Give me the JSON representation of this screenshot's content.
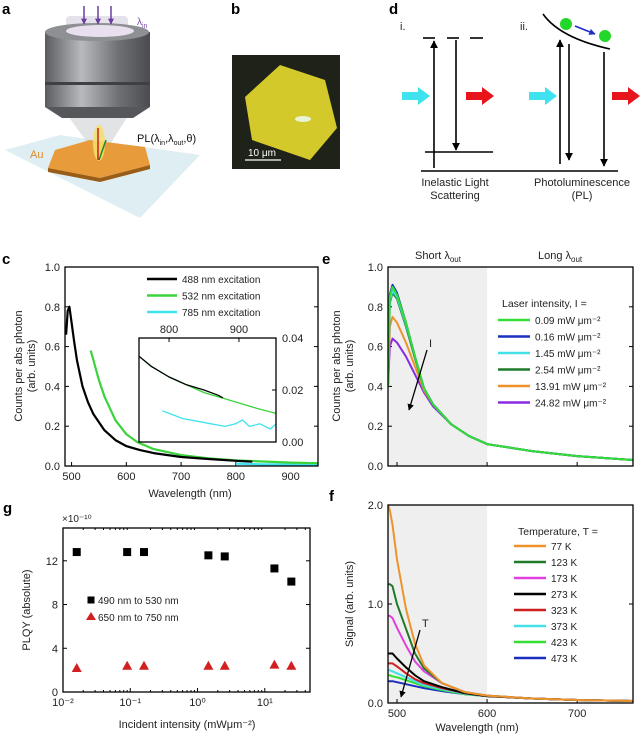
{
  "panel_letters": {
    "a": "a",
    "b": "b",
    "c": "c",
    "d": "d",
    "e": "e",
    "f": "f",
    "g": "g"
  },
  "panel_a": {
    "lambda_in": {
      "base": "λ",
      "sub": "in"
    },
    "au_label": "Au",
    "pl_label": {
      "pre": "PL(λ",
      "sub1": "in",
      "mid": ",λ",
      "sub2": "out",
      "post": ",θ)"
    }
  },
  "panel_b": {
    "scale_bar": "10 μm"
  },
  "panel_d": {
    "i_label": "i.",
    "ii_label": "ii.",
    "inelastic_line1": "Inelastic Light",
    "inelastic_line2": "Scattering",
    "pl_line1": "Photoluminescence",
    "pl_line2": "(PL)",
    "colors": {
      "incident": "#3fe3f0",
      "emitted": "#e8141b",
      "carrier": "#22d62a",
      "relax_arrow": "#1c2fc9"
    }
  },
  "chart_data": [
    {
      "id": "c",
      "type": "line",
      "xlabel": "Wavelength (nm)",
      "ylabel": [
        "Counts per abs photon",
        "(arb. units)"
      ],
      "xlim": [
        488,
        950
      ],
      "ylim": [
        0,
        1
      ],
      "xticks": [
        500,
        600,
        700,
        800,
        900
      ],
      "xtick_labels": [
        "500",
        "600",
        "700",
        "800",
        "900"
      ],
      "yticks": [
        0,
        0.2,
        0.4,
        0.6,
        0.8,
        1.0
      ],
      "ytick_labels": [
        "0.0",
        "0.2",
        "0.4",
        "0.6",
        "0.8",
        "1.0"
      ],
      "legend": "top-right",
      "series": [
        {
          "name": "488 nm excitation",
          "color": "#000000",
          "points": [
            [
              490,
              0.66
            ],
            [
              493,
              0.78
            ],
            [
              496,
              0.8
            ],
            [
              500,
              0.72
            ],
            [
              505,
              0.62
            ],
            [
              510,
              0.53
            ],
            [
              520,
              0.4
            ],
            [
              530,
              0.32
            ],
            [
              540,
              0.26
            ],
            [
              560,
              0.18
            ],
            [
              580,
              0.13
            ],
            [
              600,
              0.1
            ],
            [
              625,
              0.08
            ],
            [
              650,
              0.065
            ],
            [
              700,
              0.045
            ],
            [
              750,
              0.035
            ],
            [
              800,
              0.026
            ],
            [
              830,
              0.022
            ]
          ]
        },
        {
          "name": "532 nm excitation",
          "color": "#3ad43a",
          "points": [
            [
              535,
              0.58
            ],
            [
              540,
              0.53
            ],
            [
              550,
              0.43
            ],
            [
              560,
              0.35
            ],
            [
              570,
              0.29
            ],
            [
              580,
              0.23
            ],
            [
              600,
              0.16
            ],
            [
              620,
              0.12
            ],
            [
              650,
              0.085
            ],
            [
              700,
              0.055
            ],
            [
              750,
              0.038
            ],
            [
              800,
              0.028
            ],
            [
              900,
              0.017
            ],
            [
              950,
              0.014
            ]
          ]
        },
        {
          "name": "785 nm excitation",
          "color": "#3fe3f0",
          "points": [
            [
              800,
              0.012
            ],
            [
              850,
              0.008
            ],
            [
              900,
              0.008
            ],
            [
              950,
              0.007
            ]
          ]
        }
      ],
      "inset": {
        "xlim": [
          757,
          953
        ],
        "ylim": [
          0,
          0.04
        ],
        "xticks": [
          800,
          900
        ],
        "xtick_labels": [
          "800",
          "900"
        ],
        "yticks": [
          0,
          0.02,
          0.04
        ],
        "ytick_labels": [
          "0.00",
          "0.02",
          "0.04"
        ],
        "series": [
          {
            "color": "#3ad43a",
            "points": [
              [
                757,
                0.033
              ],
              [
                775,
                0.029
              ],
              [
                800,
                0.025
              ],
              [
                825,
                0.022
              ],
              [
                850,
                0.019
              ],
              [
                875,
                0.017
              ],
              [
                900,
                0.015
              ],
              [
                925,
                0.013
              ],
              [
                953,
                0.011
              ]
            ]
          },
          {
            "color": "#000000",
            "points": [
              [
                757,
                0.033
              ],
              [
                775,
                0.029
              ],
              [
                800,
                0.025
              ],
              [
                825,
                0.022
              ],
              [
                850,
                0.02
              ],
              [
                870,
                0.018
              ],
              [
                877,
                0.017
              ]
            ]
          },
          {
            "color": "#3fe3f0",
            "points": [
              [
                790,
                0.012
              ],
              [
                800,
                0.011
              ],
              [
                820,
                0.009
              ],
              [
                840,
                0.008
              ],
              [
                860,
                0.007
              ],
              [
                880,
                0.006
              ],
              [
                895,
                0.007
              ],
              [
                905,
                0.0085
              ],
              [
                915,
                0.006
              ],
              [
                930,
                0.007
              ],
              [
                945,
                0.005
              ],
              [
                953,
                0.007
              ]
            ]
          }
        ]
      }
    },
    {
      "id": "e",
      "type": "line",
      "xlabel": "",
      "ylabel": [
        "Counts per abs photon",
        "(arb. units)"
      ],
      "xlim": [
        490,
        762
      ],
      "ylim": [
        0,
        1
      ],
      "xticks": [
        500,
        600,
        700
      ],
      "xtick_labels": [],
      "yticks": [
        0,
        0.2,
        0.4,
        0.6,
        0.8,
        1.0
      ],
      "ytick_labels": [
        "0.0",
        "0.2",
        "0.4",
        "0.6",
        "0.8",
        "1.0"
      ],
      "shaded_region": [
        490,
        600
      ],
      "region_labels": {
        "short": {
          "base": "Short λ",
          "sub": "out"
        },
        "long": {
          "base": "Long λ",
          "sub": "out"
        }
      },
      "arrow_label": "I",
      "legend_title": "Laser intensity, I =",
      "legend": "right",
      "series": [
        {
          "name": "0.09 mW μm⁻²",
          "color": "#33dd33",
          "peak": 0.9
        },
        {
          "name": "0.16 mW μm⁻²",
          "color": "#1a2fbf",
          "peak": 0.91
        },
        {
          "name": "1.45 mW μm⁻²",
          "color": "#44e0e8",
          "peak": 0.88
        },
        {
          "name": "2.54 mW μm⁻²",
          "color": "#1f7a2a",
          "peak": 0.87
        },
        {
          "name": "13.91 mW μm⁻²",
          "color": "#f0922b",
          "peak": 0.75
        },
        {
          "name": "24.82 mW μm⁻²",
          "color": "#8a2be2",
          "peak": 0.64
        }
      ],
      "x": [
        490,
        492,
        495,
        500,
        510,
        520,
        530,
        540,
        560,
        580,
        600,
        650,
        700,
        762
      ],
      "y": [
        [
          0.4,
          0.85,
          0.9,
          0.86,
          0.72,
          0.55,
          0.39,
          0.31,
          0.21,
          0.15,
          0.11,
          0.075,
          0.05,
          0.03
        ],
        [
          0.4,
          0.86,
          0.91,
          0.87,
          0.72,
          0.55,
          0.39,
          0.31,
          0.21,
          0.15,
          0.11,
          0.075,
          0.05,
          0.03
        ],
        [
          0.4,
          0.83,
          0.88,
          0.85,
          0.71,
          0.55,
          0.39,
          0.31,
          0.21,
          0.15,
          0.11,
          0.075,
          0.05,
          0.03
        ],
        [
          0.4,
          0.82,
          0.87,
          0.84,
          0.7,
          0.54,
          0.39,
          0.31,
          0.21,
          0.15,
          0.11,
          0.075,
          0.05,
          0.03
        ],
        [
          0.4,
          0.7,
          0.75,
          0.72,
          0.62,
          0.5,
          0.38,
          0.31,
          0.21,
          0.15,
          0.11,
          0.075,
          0.05,
          0.03
        ],
        [
          0.4,
          0.6,
          0.64,
          0.62,
          0.55,
          0.46,
          0.37,
          0.3,
          0.21,
          0.15,
          0.11,
          0.075,
          0.05,
          0.03
        ]
      ]
    },
    {
      "id": "f",
      "type": "line",
      "xlabel": "Wavelength (nm)",
      "ylabel": [
        "Signal (arb. units)"
      ],
      "xlim": [
        490,
        762
      ],
      "ylim": [
        0,
        2
      ],
      "xticks": [
        500,
        600,
        700
      ],
      "xtick_labels": [
        "500",
        "600",
        "700"
      ],
      "yticks": [
        0,
        1,
        2
      ],
      "ytick_labels": [
        "0.0",
        "1.0",
        "2.0"
      ],
      "shaded_region": [
        490,
        600
      ],
      "arrow_label": "T",
      "legend_title": "Temperature, T =",
      "legend": "right",
      "series": [
        {
          "name": "77 K",
          "color": "#f0922b"
        },
        {
          "name": "123 K",
          "color": "#1f7a2a"
        },
        {
          "name": "173 K",
          "color": "#e040e0"
        },
        {
          "name": "273 K",
          "color": "#000000"
        },
        {
          "name": "323 K",
          "color": "#cc1f1f"
        },
        {
          "name": "373 K",
          "color": "#44e0e8"
        },
        {
          "name": "423 K",
          "color": "#33dd33"
        },
        {
          "name": "473 K",
          "color": "#1a2fbf"
        }
      ],
      "x": [
        490,
        492,
        495,
        500,
        510,
        520,
        530,
        550,
        575,
        600,
        650,
        700,
        762
      ],
      "y": [
        [
          2.0,
          1.95,
          1.8,
          1.45,
          0.95,
          0.6,
          0.38,
          0.2,
          0.11,
          0.075,
          0.045,
          0.03,
          0.02
        ],
        [
          1.2,
          1.2,
          1.18,
          1.0,
          0.75,
          0.5,
          0.35,
          0.2,
          0.11,
          0.075,
          0.045,
          0.03,
          0.02
        ],
        [
          0.88,
          0.88,
          0.86,
          0.76,
          0.58,
          0.42,
          0.32,
          0.2,
          0.11,
          0.075,
          0.045,
          0.03,
          0.02
        ],
        [
          0.5,
          0.5,
          0.5,
          0.45,
          0.36,
          0.28,
          0.22,
          0.16,
          0.1,
          0.07,
          0.045,
          0.03,
          0.02
        ],
        [
          0.4,
          0.4,
          0.4,
          0.37,
          0.3,
          0.24,
          0.2,
          0.15,
          0.1,
          0.07,
          0.045,
          0.03,
          0.02
        ],
        [
          0.33,
          0.33,
          0.32,
          0.3,
          0.26,
          0.22,
          0.18,
          0.14,
          0.095,
          0.07,
          0.045,
          0.03,
          0.02
        ],
        [
          0.28,
          0.28,
          0.27,
          0.26,
          0.23,
          0.2,
          0.17,
          0.13,
          0.09,
          0.07,
          0.045,
          0.03,
          0.02
        ],
        [
          0.22,
          0.22,
          0.22,
          0.21,
          0.19,
          0.17,
          0.15,
          0.12,
          0.09,
          0.07,
          0.045,
          0.03,
          0.02
        ]
      ]
    },
    {
      "id": "g",
      "type": "scatter",
      "xlabel": "Incident intensity (mWμm⁻²)",
      "ylabel": [
        "PLQY (absolute)"
      ],
      "y_multiplier": "×10⁻¹⁰",
      "xscale": "log",
      "xlim": [
        0.01,
        47
      ],
      "ylim": [
        0,
        15
      ],
      "xticks": [
        0.01,
        0.1,
        1,
        10
      ],
      "xtick_labels": [
        "10⁻²",
        "10⁻¹",
        "10⁰",
        "10¹"
      ],
      "yticks": [
        0,
        4,
        8,
        12
      ],
      "ytick_labels": [
        "0",
        "4",
        "8",
        "12"
      ],
      "legend": "center-left",
      "series": [
        {
          "name": "490 nm to 530 nm",
          "marker": "square",
          "color": "#000000",
          "points": [
            [
              0.016,
              12.8
            ],
            [
              0.09,
              12.8
            ],
            [
              0.16,
              12.8
            ],
            [
              1.45,
              12.5
            ],
            [
              2.54,
              12.4
            ],
            [
              13.91,
              11.3
            ],
            [
              24.82,
              10.1
            ]
          ]
        },
        {
          "name": "650 nm to 750 nm",
          "marker": "triangle",
          "color": "#d21f1f",
          "points": [
            [
              0.016,
              2.2
            ],
            [
              0.09,
              2.4
            ],
            [
              0.16,
              2.4
            ],
            [
              1.45,
              2.4
            ],
            [
              2.54,
              2.4
            ],
            [
              13.91,
              2.5
            ],
            [
              24.82,
              2.4
            ]
          ]
        }
      ]
    }
  ]
}
